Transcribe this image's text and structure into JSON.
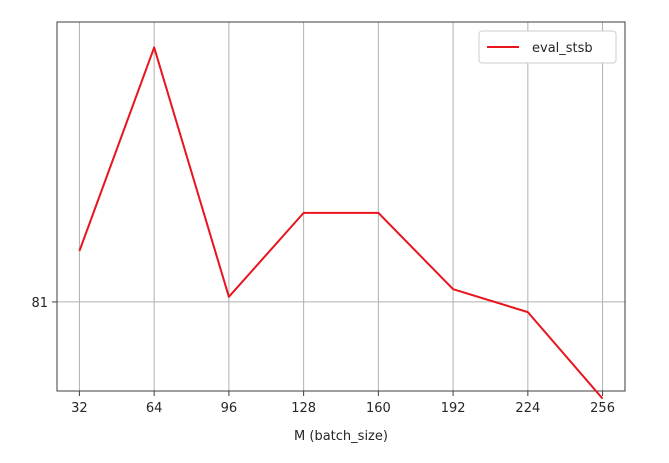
{
  "chart_data": {
    "type": "line",
    "title": "",
    "xlabel": "M (batch_size)",
    "ylabel": "",
    "x": [
      32,
      64,
      96,
      128,
      160,
      192,
      224,
      256
    ],
    "xticks": [
      "32",
      "64",
      "96",
      "128",
      "160",
      "192",
      "224",
      "256"
    ],
    "yticks": [
      "81"
    ],
    "ytick_values": [
      81
    ],
    "xlim": [
      22.4,
      265.6
    ],
    "ylim": [
      80.65,
      82.1
    ],
    "grid": true,
    "legend": "top-right",
    "series": [
      {
        "name": "eval_stsb",
        "color": "#e8141e",
        "values": [
          81.2,
          82.0,
          81.02,
          81.35,
          81.35,
          81.05,
          80.96,
          80.62
        ]
      }
    ]
  }
}
